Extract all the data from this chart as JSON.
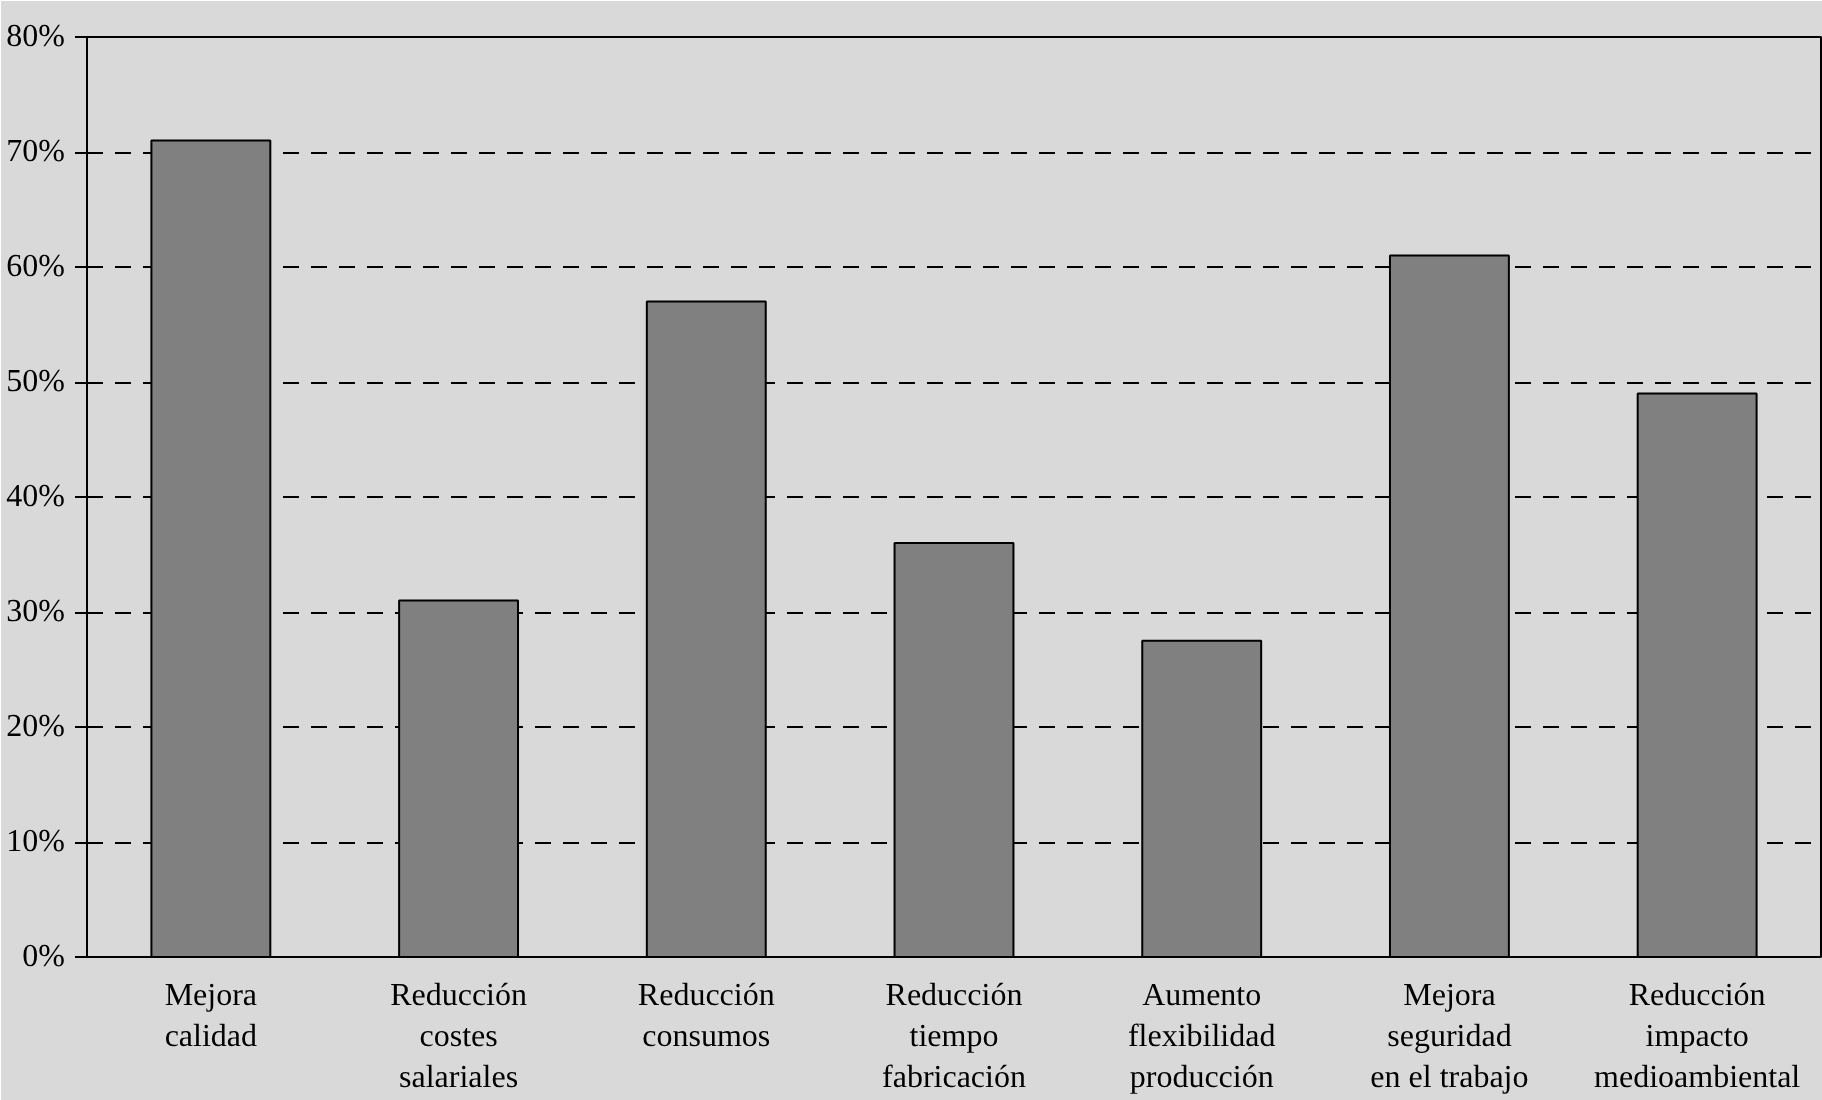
{
  "chart_data": {
    "type": "bar",
    "categories": [
      "Mejora\ncalidad",
      "Reducción\ncostes\nsalariales",
      "Reducción\nconsumos",
      "Reducción\ntiempo\nfabricación",
      "Aumento\nflexibilidad\nproducción",
      "Mejora\nseguridad\nen el trabajo",
      "Reducción\nimpacto\nmedioambiental"
    ],
    "values": [
      71,
      31,
      57,
      36,
      27.5,
      61,
      49
    ],
    "color": "#808080",
    "ylim": [
      0,
      80
    ],
    "yticks": [
      {
        "value": 0,
        "label": "0%"
      },
      {
        "value": 10,
        "label": "10%"
      },
      {
        "value": 20,
        "label": "20%"
      },
      {
        "value": 30,
        "label": "30%"
      },
      {
        "value": 40,
        "label": "40%"
      },
      {
        "value": 50,
        "label": "50%"
      },
      {
        "value": 60,
        "label": "60%"
      },
      {
        "value": 70,
        "label": "70%"
      },
      {
        "value": 80,
        "label": "80%"
      }
    ],
    "grid": "y"
  }
}
